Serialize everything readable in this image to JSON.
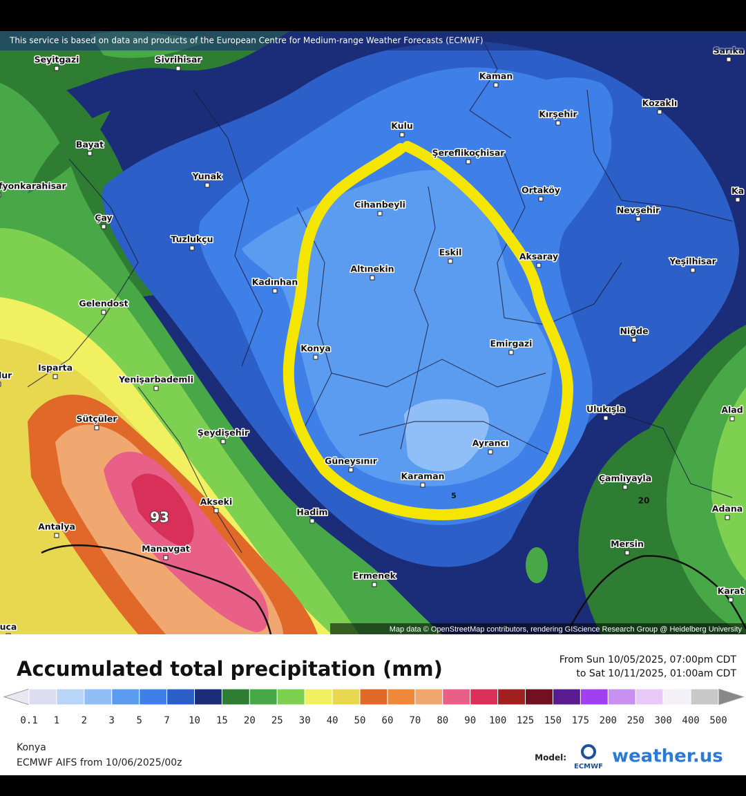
{
  "map": {
    "attribution": "This service is based on data and products of the European Centre for Medium-range Weather Forecasts (ECMWF)",
    "credit": "Map data © OpenStreetMap contributors, rendering GIScience Research Group @ Heidelberg University",
    "places": [
      "Seyitgazi",
      "Sivrihisar",
      "Sarıka",
      "Kaman",
      "Kozaklı",
      "Kırşehir",
      "Kulu",
      "Şereflikoçhisar",
      "Bayat",
      "Yunak",
      "fyonkarahisar",
      "Ortaköy",
      "Ka",
      "Cihanbeyli",
      "Nevşehir",
      "Çay",
      "Tuzlukçu",
      "Eskil",
      "Aksaray",
      "Yeşilhisar",
      "Altınekin",
      "Kadınhan",
      "Gelendost",
      "Niğde",
      "Emirgazi",
      "Konya",
      "lur",
      "Isparta",
      "Yenişarbademli",
      "Ulukışla",
      "Alad",
      "Sütçüler",
      "Şeydişehir",
      "Ayrancı",
      "Güneysınır",
      "Karaman",
      "Çamlıyayla",
      "Akseki",
      "Hadim",
      "Adana",
      "Antalya",
      "Mersin",
      "Manavgat",
      "Ermenek",
      "Karat",
      "uca"
    ],
    "values": [
      93,
      5,
      20
    ]
  },
  "legend": {
    "title": "Accumulated total precipitation (mm)",
    "from": "From Sun 10/05/2025, 07:00pm CDT",
    "to": "to Sat 10/11/2025, 01:00am CDT",
    "ticks": [
      0.1,
      1,
      2,
      3,
      5,
      7,
      10,
      15,
      20,
      25,
      30,
      40,
      50,
      60,
      70,
      80,
      90,
      100,
      125,
      150,
      175,
      200,
      250,
      300,
      400,
      500
    ],
    "colors": [
      "#dcdcf0",
      "#b8d4f8",
      "#90bff8",
      "#5c9cf0",
      "#3f7fe8",
      "#2c5fc8",
      "#1b2d78",
      "#2e7d32",
      "#48a848",
      "#7ed050",
      "#f0f060",
      "#e8d850",
      "#e06828",
      "#f0883a",
      "#f0a870",
      "#e86088",
      "#d83058",
      "#a02020",
      "#701020",
      "#5a1a90",
      "#a040f0",
      "#c890f0",
      "#e8c8f8",
      "#f4f0f8",
      "#c8c8c8"
    ],
    "under_color": "#e8e8f4",
    "over_color": "#888888"
  },
  "footer": {
    "location": "Konya",
    "run": "ECMWF AIFS from 10/06/2025/00z",
    "model_label": "Model:",
    "model": "ECMWF",
    "brand": "weather.us"
  }
}
